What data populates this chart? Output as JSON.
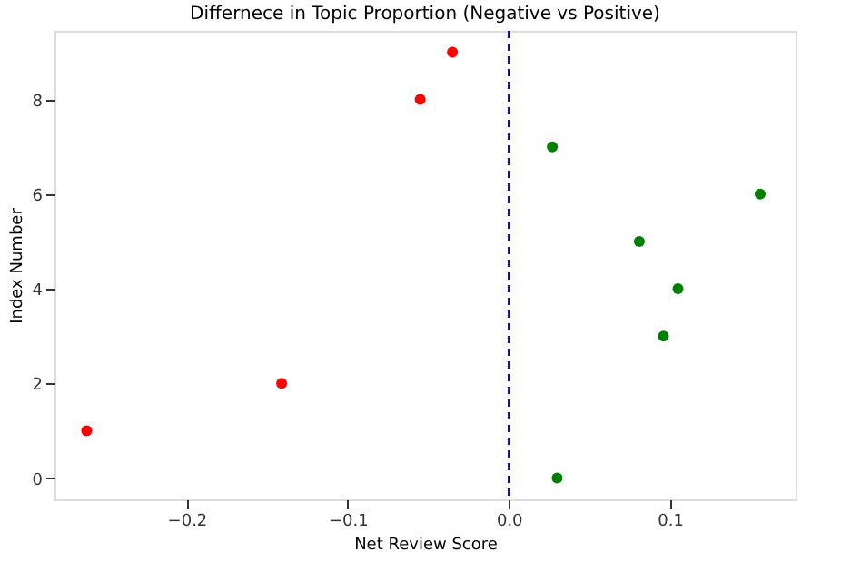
{
  "chart_data": {
    "type": "scatter",
    "title": "Differnece in Topic Proportion (Negative vs Positive)",
    "xlabel": "Net Review Score",
    "ylabel": "Index Number",
    "x": [
      0.03,
      -0.262,
      -0.141,
      0.096,
      0.105,
      0.081,
      0.156,
      0.027,
      -0.055,
      -0.035
    ],
    "values": [
      0,
      1,
      2,
      3,
      4,
      5,
      6,
      7,
      8,
      9
    ],
    "colors": [
      "#008000",
      "#ff0000",
      "#ff0000",
      "#008000",
      "#008000",
      "#008000",
      "#008000",
      "#008000",
      "#ff0000",
      "#ff0000"
    ],
    "xlim": [
      -0.282,
      0.178
    ],
    "xticks": [
      {
        "value": -0.2,
        "label": "−0.2"
      },
      {
        "value": -0.1,
        "label": "−0.1"
      },
      {
        "value": 0.0,
        "label": "0.0"
      },
      {
        "value": 0.1,
        "label": "0.1"
      }
    ],
    "ylim": [
      -0.45,
      9.45
    ],
    "yticks": [
      0,
      2,
      4,
      6,
      8
    ],
    "ref_lines": [
      {
        "axis": "x",
        "value": 0,
        "color": "#0000ff",
        "line_style": "dashed"
      }
    ],
    "marker": "circle",
    "grid": false
  }
}
